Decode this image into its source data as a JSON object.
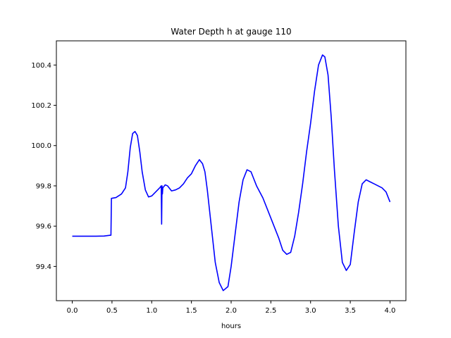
{
  "chart_data": {
    "type": "line",
    "title": "Water Depth h at gauge 110",
    "xlabel": "hours",
    "ylabel": "",
    "xlim": [
      -0.2,
      4.2
    ],
    "ylim": [
      99.23,
      100.52
    ],
    "xticks": [
      0.0,
      0.5,
      1.0,
      1.5,
      2.0,
      2.5,
      3.0,
      3.5,
      4.0
    ],
    "xtick_labels": [
      "0.0",
      "0.5",
      "1.0",
      "1.5",
      "2.0",
      "2.5",
      "3.0",
      "3.5",
      "4.0"
    ],
    "yticks": [
      99.4,
      99.6,
      99.8,
      100.0,
      100.2,
      100.4
    ],
    "ytick_labels": [
      "99.4",
      "99.6",
      "99.8",
      "100.0",
      "100.2",
      "100.4"
    ],
    "grid": false,
    "legend": "none",
    "color": "#0000ff",
    "series": [
      {
        "x": [
          0.0,
          0.3,
          0.4,
          0.48,
          0.487,
          0.493,
          0.55,
          0.62,
          0.67,
          0.7,
          0.73,
          0.76,
          0.79,
          0.82,
          0.85,
          0.88,
          0.92,
          0.96,
          1.0,
          1.05,
          1.1,
          1.12,
          1.125,
          1.13,
          1.135,
          1.14,
          1.17,
          1.2,
          1.25,
          1.3,
          1.35,
          1.4,
          1.45,
          1.5,
          1.55,
          1.6,
          1.64,
          1.67,
          1.7,
          1.75,
          1.8,
          1.85,
          1.9,
          1.96,
          2.0,
          2.05,
          2.1,
          2.15,
          2.2,
          2.25,
          2.28,
          2.32,
          2.4,
          2.5,
          2.6,
          2.65,
          2.7,
          2.75,
          2.8,
          2.85,
          2.9,
          2.95,
          3.0,
          3.05,
          3.1,
          3.15,
          3.18,
          3.22,
          3.26,
          3.3,
          3.35,
          3.4,
          3.45,
          3.5,
          3.55,
          3.6,
          3.65,
          3.7,
          3.75,
          3.8,
          3.85,
          3.9,
          3.95,
          4.0
        ],
        "y": [
          99.55,
          99.55,
          99.551,
          99.555,
          99.555,
          99.738,
          99.742,
          99.76,
          99.79,
          99.87,
          99.99,
          100.06,
          100.07,
          100.05,
          99.97,
          99.87,
          99.78,
          99.745,
          99.75,
          99.77,
          99.79,
          99.8,
          99.61,
          99.8,
          99.76,
          99.79,
          99.805,
          99.8,
          99.775,
          99.78,
          99.79,
          99.81,
          99.84,
          99.86,
          99.9,
          99.93,
          99.91,
          99.87,
          99.78,
          99.6,
          99.42,
          99.32,
          99.28,
          99.3,
          99.4,
          99.56,
          99.72,
          99.83,
          99.88,
          99.87,
          99.84,
          99.8,
          99.74,
          99.64,
          99.54,
          99.48,
          99.46,
          99.47,
          99.55,
          99.67,
          99.81,
          99.97,
          100.11,
          100.27,
          100.4,
          100.45,
          100.44,
          100.35,
          100.14,
          99.88,
          99.6,
          99.42,
          99.38,
          99.41,
          99.57,
          99.72,
          99.81,
          99.83,
          99.82,
          99.81,
          99.8,
          99.79,
          99.77,
          99.72
        ]
      }
    ]
  }
}
